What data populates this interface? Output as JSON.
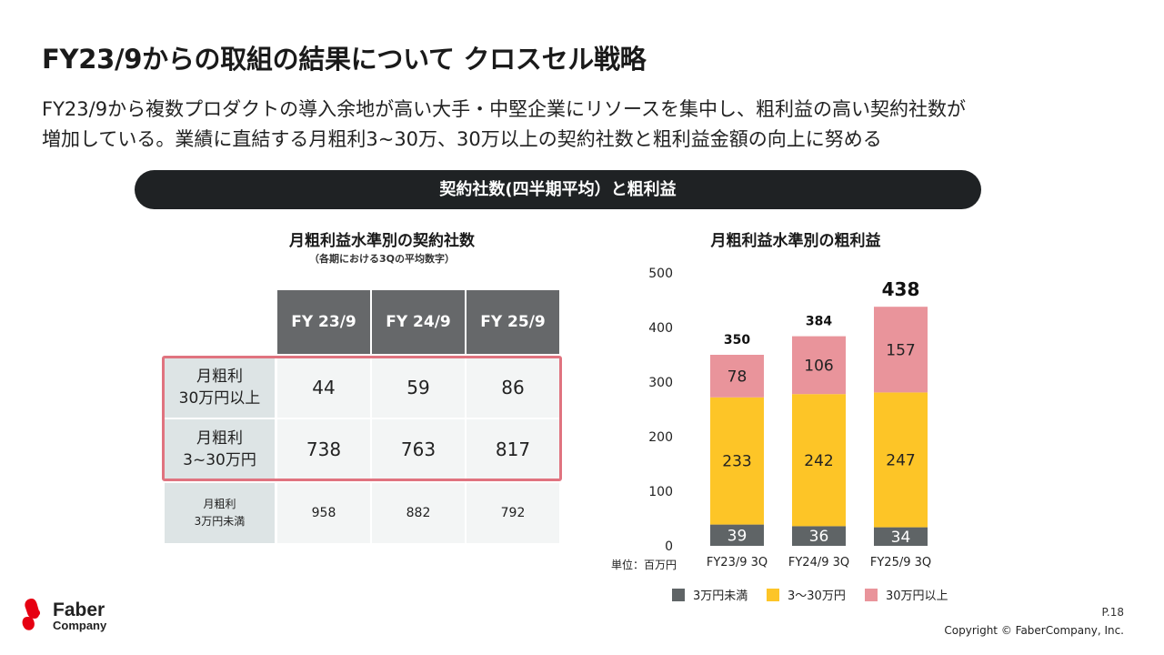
{
  "title": "FY23/9からの取組の結果について クロスセル戦略",
  "subtitle": {
    "line1": "FY23/9から複数プロダクトの導入余地が高い大手・中堅企業にリソースを集中し、粗利益の高い契約社数が",
    "line2": "増加している。業績に直結する月粗利3~30万、30万以上の契約社数と粗利益金額の向上に努める"
  },
  "banner": "契約社数(四半期平均）と粗利益",
  "table": {
    "title": "月粗利益水準別の契約社数",
    "note": "（各期における3Qの平均数字）",
    "headers": [
      "FY 23/9",
      "FY 24/9",
      "FY 25/9"
    ],
    "rows": [
      {
        "label1": "月粗利",
        "label2": "30万円以上",
        "values": [
          "44",
          "59",
          "86"
        ]
      },
      {
        "label1": "月粗利",
        "label2": "3~30万円",
        "values": [
          "738",
          "763",
          "817"
        ]
      },
      {
        "label1": "月粗利",
        "label2": "3万円未満",
        "values": [
          "958",
          "882",
          "792"
        ]
      }
    ]
  },
  "chart_data": {
    "type": "bar",
    "stacked": true,
    "title": "月粗利益水準別の粗利益",
    "unit_label": "単位：百万円",
    "categories": [
      "FY23/9 3Q",
      "FY24/9 3Q",
      "FY25/9 3Q"
    ],
    "series": [
      {
        "name": "3万円未満",
        "values": [
          39,
          36,
          34
        ],
        "color": "#5f6466"
      },
      {
        "name": "3〜30万円",
        "values": [
          233,
          242,
          247
        ],
        "color": "#fdc527"
      },
      {
        "name": "30万円以上",
        "values": [
          78,
          106,
          157
        ],
        "color": "#e9949b"
      }
    ],
    "totals": [
      350,
      384,
      438
    ],
    "ylim": [
      0,
      500
    ],
    "yticks": [
      0,
      100,
      200,
      300,
      400,
      500
    ],
    "grid": false,
    "legend_position": "bottom"
  },
  "footer": {
    "logo_line1": "Faber",
    "logo_line2": "Company",
    "logo_color": "#e60012",
    "page": "P.18",
    "copyright": "Copyright © FaberCompany, Inc."
  }
}
